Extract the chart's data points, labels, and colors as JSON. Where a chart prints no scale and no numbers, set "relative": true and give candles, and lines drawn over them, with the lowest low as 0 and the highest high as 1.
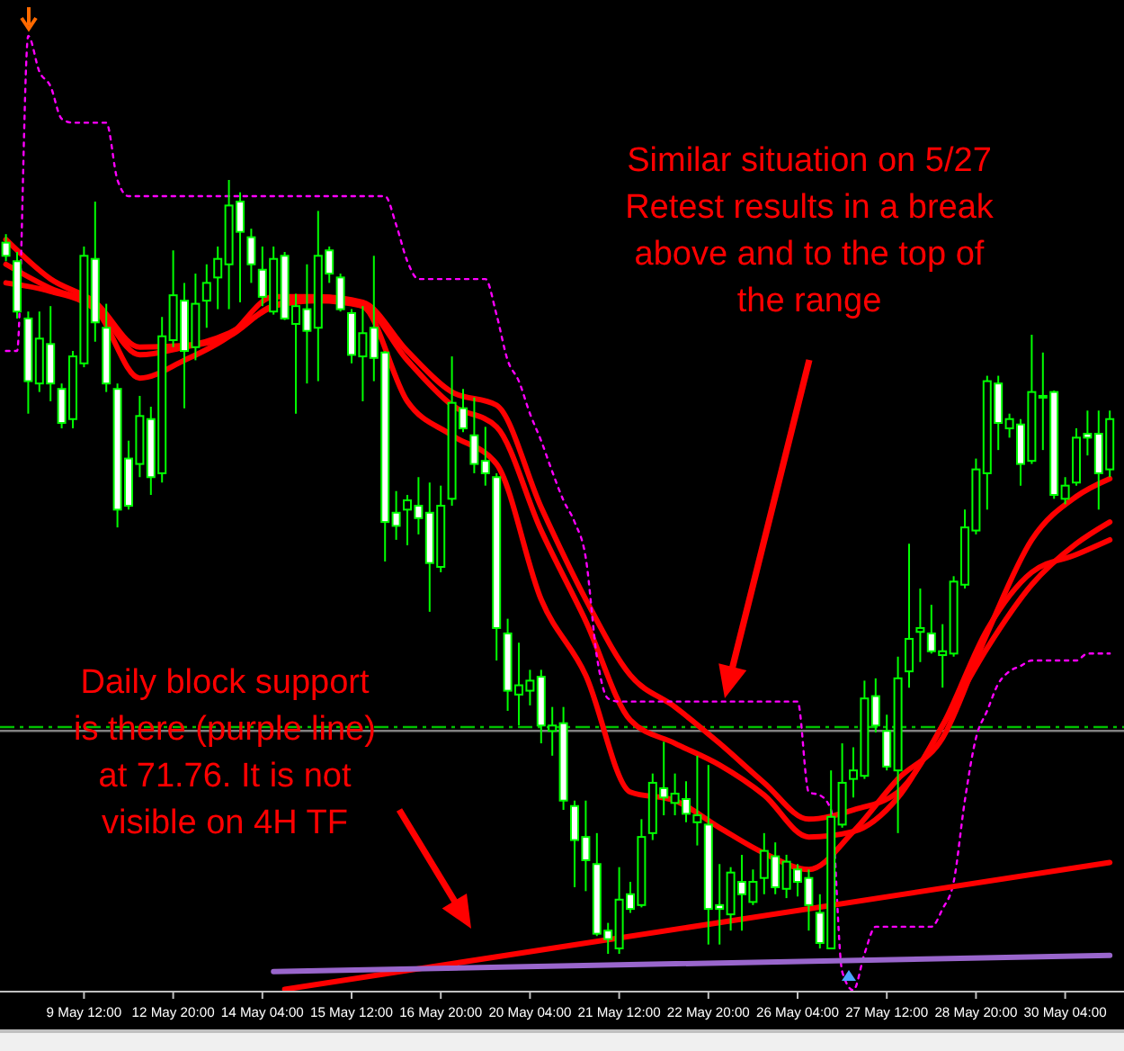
{
  "chart_data": {
    "type": "candlestick",
    "relative": true,
    "color": "#00ff00",
    "categories": [
      null,
      null,
      null,
      null,
      null,
      null,
      null,
      "9 May 12:00",
      null,
      null,
      null,
      null,
      null,
      null,
      null,
      "12 May 20:00",
      null,
      null,
      null,
      null,
      null,
      null,
      null,
      "14 May 04:00",
      null,
      null,
      null,
      null,
      null,
      null,
      null,
      "15 May 12:00",
      null,
      null,
      null,
      null,
      null,
      null,
      null,
      "16 May 20:00",
      null,
      null,
      null,
      null,
      null,
      null,
      null,
      "20 May 04:00",
      null,
      null,
      null,
      null,
      null,
      null,
      null,
      "21 May 12:00",
      null,
      null,
      null,
      null,
      null,
      null,
      null,
      "22 May 20:00",
      null,
      null,
      null,
      null,
      null,
      null,
      null,
      "26 May 04:00",
      null,
      null,
      null,
      null,
      null,
      null,
      null,
      "27 May 12:00",
      null,
      null,
      null,
      null,
      null,
      null,
      null,
      "28 May 20:00",
      null,
      null,
      null,
      null,
      null,
      null,
      null,
      "30 May 04:00",
      null,
      null,
      null,
      null
    ],
    "ohlc": [
      [
        0.919,
        0.93,
        0.895,
        0.902
      ],
      [
        0.895,
        0.907,
        0.821,
        0.83
      ],
      [
        0.821,
        0.83,
        0.698,
        0.74
      ],
      [
        0.737,
        0.83,
        0.726,
        0.795
      ],
      [
        0.788,
        0.837,
        0.714,
        0.737
      ],
      [
        0.73,
        0.737,
        0.679,
        0.686
      ],
      [
        0.691,
        0.779,
        0.679,
        0.772
      ],
      [
        0.763,
        0.914,
        0.758,
        0.902
      ],
      [
        0.898,
        0.972,
        0.791,
        0.816
      ],
      [
        0.809,
        0.84,
        0.726,
        0.737
      ],
      [
        0.73,
        0.737,
        0.551,
        0.574
      ],
      [
        0.64,
        0.663,
        0.574,
        0.579
      ],
      [
        0.633,
        0.721,
        0.616,
        0.695
      ],
      [
        0.691,
        0.707,
        0.593,
        0.616
      ],
      [
        0.621,
        0.823,
        0.609,
        0.798
      ],
      [
        0.793,
        0.909,
        0.784,
        0.851
      ],
      [
        0.844,
        0.867,
        0.705,
        0.779
      ],
      [
        0.784,
        0.879,
        0.767,
        0.84
      ],
      [
        0.844,
        0.891,
        0.809,
        0.867
      ],
      [
        0.874,
        0.914,
        0.833,
        0.898
      ],
      [
        0.891,
        1,
        0.833,
        0.967
      ],
      [
        0.972,
        0.984,
        0.842,
        0.933
      ],
      [
        0.926,
        0.937,
        0.867,
        0.891
      ],
      [
        0.884,
        0.914,
        0.837,
        0.849
      ],
      [
        0.83,
        0.914,
        0.826,
        0.898
      ],
      [
        0.902,
        0.907,
        0.819,
        0.821
      ],
      [
        0.814,
        0.853,
        0.698,
        0.837
      ],
      [
        0.833,
        0.891,
        0.737,
        0.805
      ],
      [
        0.809,
        0.96,
        0.74,
        0.902
      ],
      [
        0.909,
        0.914,
        0.867,
        0.879
      ],
      [
        0.874,
        0.879,
        0.83,
        0.833
      ],
      [
        0.828,
        0.833,
        0.763,
        0.774
      ],
      [
        0.772,
        0.837,
        0.714,
        0.802
      ],
      [
        0.809,
        0.902,
        0.74,
        0.77
      ],
      [
        0.777,
        0.779,
        0.507,
        0.558
      ],
      [
        0.57,
        0.598,
        0.535,
        0.553
      ],
      [
        0.574,
        0.593,
        0.528,
        0.586
      ],
      [
        0.579,
        0.616,
        0.542,
        0.563
      ],
      [
        0.57,
        0.609,
        0.442,
        0.505
      ],
      [
        0.5,
        0.605,
        0.493,
        0.579
      ],
      [
        0.588,
        0.772,
        0.579,
        0.712
      ],
      [
        0.705,
        0.73,
        0.674,
        0.679
      ],
      [
        0.67,
        0.719,
        0.621,
        0.633
      ],
      [
        0.637,
        0.681,
        0.605,
        0.621
      ],
      [
        0.616,
        0.621,
        0.379,
        0.421
      ],
      [
        0.414,
        0.433,
        0.314,
        0.34
      ],
      [
        0.335,
        0.402,
        0.295,
        0.347
      ],
      [
        0.34,
        0.367,
        0.321,
        0.353
      ],
      [
        0.358,
        0.367,
        0.272,
        0.295
      ],
      [
        0.288,
        0.319,
        0.256,
        0.295
      ],
      [
        0.298,
        0.319,
        0.186,
        0.198
      ],
      [
        0.191,
        0.198,
        0.086,
        0.147
      ],
      [
        0.151,
        0.198,
        0.081,
        0.121
      ],
      [
        0.116,
        0.156,
        0.023,
        0.026
      ],
      [
        0.03,
        0.04,
        0,
        0.019
      ],
      [
        0.007,
        0.112,
        0,
        0.07
      ],
      [
        0.077,
        0.093,
        0.053,
        0.058
      ],
      [
        0.063,
        0.174,
        0.06,
        0.151
      ],
      [
        0.156,
        0.233,
        0.147,
        0.221
      ],
      [
        0.214,
        0.274,
        0.179,
        0.202
      ],
      [
        0.195,
        0.233,
        0.179,
        0.207
      ],
      [
        0.2,
        0.223,
        0.17,
        0.181
      ],
      [
        0.17,
        0.256,
        0.14,
        0.179
      ],
      [
        0.167,
        0.244,
        0.012,
        0.058
      ],
      [
        0.063,
        0.116,
        0.012,
        0.058
      ],
      [
        0.051,
        0.112,
        0.03,
        0.105
      ],
      [
        0.093,
        0.128,
        0.03,
        0.077
      ],
      [
        0.067,
        0.109,
        0.063,
        0.093
      ],
      [
        0.098,
        0.156,
        0.077,
        0.133
      ],
      [
        0.126,
        0.144,
        0.077,
        0.086
      ],
      [
        0.084,
        0.128,
        0.072,
        0.119
      ],
      [
        0.109,
        0.116,
        0.074,
        0.093
      ],
      [
        0.098,
        0.109,
        0.03,
        0.063
      ],
      [
        0.053,
        0.077,
        0.007,
        0.014
      ],
      [
        0.007,
        0.237,
        0.007,
        0.177
      ],
      [
        0.167,
        0.272,
        0.163,
        0.221
      ],
      [
        0.226,
        0.267,
        0.202,
        0.237
      ],
      [
        0.23,
        0.353,
        0.226,
        0.33
      ],
      [
        0.333,
        0.356,
        0.286,
        0.295
      ],
      [
        0.288,
        0.309,
        0.237,
        0.242
      ],
      [
        0.237,
        0.384,
        0.156,
        0.356
      ],
      [
        0.365,
        0.53,
        0.344,
        0.407
      ],
      [
        0.416,
        0.472,
        0.377,
        0.421
      ],
      [
        0.414,
        0.451,
        0.388,
        0.391
      ],
      [
        0.386,
        0.426,
        0.344,
        0.391
      ],
      [
        0.388,
        0.488,
        0.384,
        0.481
      ],
      [
        0.477,
        0.574,
        0.472,
        0.551
      ],
      [
        0.547,
        0.64,
        0.542,
        0.626
      ],
      [
        0.621,
        0.747,
        0.574,
        0.74
      ],
      [
        0.737,
        0.747,
        0.651,
        0.686
      ],
      [
        0.679,
        0.698,
        0.667,
        0.691
      ],
      [
        0.684,
        0.691,
        0.605,
        0.633
      ],
      [
        0.637,
        0.8,
        0.633,
        0.726
      ],
      [
        0.721,
        0.777,
        0.651,
        0.721
      ],
      [
        0.726,
        0.728,
        0.588,
        0.593
      ],
      [
        0.588,
        0.616,
        0.581,
        0.605
      ],
      [
        0.609,
        0.679,
        0.605,
        0.667
      ],
      [
        0.672,
        0.702,
        0.644,
        0.667
      ],
      [
        0.672,
        0.702,
        0.574,
        0.621
      ],
      [
        0.626,
        0.702,
        0.616,
        0.691
      ]
    ],
    "series": [
      {
        "type": "line",
        "color": "#ff0000",
        "values": [
          0.867,
          null,
          null,
          null,
          0.856,
          null,
          null,
          null,
          0.833,
          null,
          null,
          null,
          0.744,
          null,
          null,
          null,
          0.767,
          null,
          null,
          null,
          0.798,
          null,
          null,
          null,
          0.849,
          null,
          null,
          null,
          0.849,
          null,
          null,
          null,
          0.837,
          null,
          null,
          null,
          0.714,
          null,
          null,
          null,
          0.67,
          null,
          null,
          null,
          0.633,
          null,
          null,
          null,
          0.458,
          null,
          null,
          null,
          0.36,
          null,
          null,
          null,
          0.209,
          null,
          null,
          null,
          0.198,
          null,
          null,
          null,
          0.163,
          null,
          null,
          null,
          0.13,
          null,
          null,
          null,
          0.109,
          null,
          null,
          null,
          0.158,
          null,
          null,
          null,
          0.226,
          null,
          null,
          null,
          0.279,
          null,
          null,
          null,
          0.414,
          null,
          null,
          null,
          0.535,
          null,
          null,
          null,
          0.591,
          null,
          null,
          0.614
        ]
      },
      {
        "type": "line",
        "color": "#ff0000",
        "values": [
          0.891,
          null,
          null,
          null,
          0.86,
          null,
          null,
          null,
          0.837,
          null,
          null,
          null,
          0.774,
          null,
          null,
          null,
          0.784,
          null,
          null,
          null,
          0.798,
          null,
          null,
          null,
          0.837,
          null,
          null,
          null,
          0.844,
          null,
          null,
          null,
          0.837,
          null,
          null,
          null,
          0.767,
          null,
          null,
          null,
          0.709,
          null,
          null,
          null,
          0.681,
          null,
          null,
          null,
          0.547,
          null,
          null,
          null,
          0.43,
          null,
          null,
          null,
          0.302,
          null,
          null,
          null,
          0.272,
          null,
          null,
          null,
          0.244,
          null,
          null,
          null,
          0.205,
          null,
          null,
          null,
          0.151,
          null,
          null,
          null,
          0.158,
          null,
          null,
          null,
          0.202,
          null,
          null,
          null,
          0.295,
          null,
          null,
          null,
          0.395,
          null,
          null,
          null,
          0.477,
          null,
          null,
          null,
          0.53,
          null,
          null,
          0.558
        ]
      },
      {
        "type": "line",
        "color": "#ff0000",
        "values": [
          0.923,
          null,
          null,
          null,
          0.872,
          null,
          null,
          null,
          0.842,
          null,
          null,
          null,
          0.784,
          null,
          null,
          null,
          0.786,
          null,
          null,
          null,
          0.802,
          null,
          null,
          null,
          0.837,
          null,
          null,
          null,
          0.849,
          null,
          null,
          null,
          0.842,
          null,
          null,
          null,
          0.779,
          null,
          null,
          null,
          0.726,
          null,
          null,
          null,
          0.709,
          null,
          null,
          null,
          0.577,
          null,
          null,
          null,
          0.458,
          null,
          null,
          null,
          0.36,
          null,
          null,
          null,
          0.319,
          null,
          null,
          null,
          0.272,
          null,
          null,
          null,
          0.221,
          null,
          null,
          null,
          0.174,
          null,
          null,
          null,
          0.186,
          null,
          null,
          null,
          0.209,
          null,
          null,
          null,
          0.295,
          null,
          null,
          null,
          0.419,
          null,
          null,
          null,
          0.493,
          null,
          null,
          null,
          0.516,
          null,
          null,
          0.535
        ]
      },
      {
        "type": "line",
        "color": "#ff00ff",
        "line_style": "dotted",
        "values": [
          0.779,
          0.779,
          1.186,
          1.14,
          1.121,
          1.079,
          1.074,
          null,
          null,
          1.074,
          1.0,
          0.979,
          null,
          null,
          null,
          null,
          null,
          null,
          null,
          null,
          null,
          null,
          null,
          null,
          null,
          null,
          null,
          null,
          null,
          null,
          null,
          null,
          null,
          null,
          0.979,
          0.942,
          0.895,
          0.872,
          null,
          null,
          null,
          null,
          null,
          0.872,
          0.826,
          0.767,
          0.74,
          0.698,
          0.663,
          0.623,
          0.586,
          0.558,
          0.512,
          0.384,
          0.33,
          0.326,
          null,
          null,
          null,
          null,
          null,
          null,
          null,
          null,
          null,
          null,
          null,
          null,
          null,
          null,
          null,
          0.326,
          0.209,
          0.205,
          0.186,
          -0.023,
          -0.047,
          0,
          0.035,
          null,
          null,
          null,
          null,
          0.035,
          0.058,
          0.093,
          0.198,
          0.279,
          0.314,
          0.349,
          0.365,
          0.372,
          0.379,
          null,
          null,
          null,
          0.379,
          0.388,
          null,
          0.388
        ]
      },
      {
        "type": "line",
        "color": "#ff0000",
        "values": [
          null,
          null,
          null,
          null,
          null,
          null,
          null,
          null,
          null,
          null,
          null,
          null,
          null,
          null,
          null,
          null,
          null,
          null,
          null,
          null,
          null,
          null,
          null,
          null,
          null,
          -0.046,
          null,
          null,
          null,
          null,
          null,
          null,
          null,
          null,
          null,
          null,
          null,
          null,
          null,
          null,
          null,
          null,
          null,
          null,
          null,
          null,
          null,
          null,
          null,
          null,
          null,
          null,
          null,
          null,
          null,
          null,
          null,
          null,
          null,
          null,
          null,
          null,
          null,
          null,
          null,
          null,
          null,
          null,
          null,
          null,
          null,
          null,
          null,
          null,
          null,
          null,
          null,
          null,
          null,
          null,
          null,
          null,
          null,
          null,
          null,
          null,
          null,
          null,
          null,
          null,
          null,
          null,
          null,
          null,
          null,
          null,
          null,
          null,
          null,
          0.118
        ]
      },
      {
        "type": "line",
        "color": "#9966cc",
        "values": [
          null,
          null,
          null,
          null,
          null,
          null,
          null,
          null,
          null,
          null,
          null,
          null,
          null,
          null,
          null,
          null,
          null,
          null,
          null,
          null,
          null,
          null,
          null,
          null,
          -0.023,
          null,
          null,
          null,
          null,
          null,
          null,
          null,
          null,
          null,
          null,
          null,
          null,
          null,
          null,
          null,
          null,
          null,
          null,
          null,
          null,
          null,
          null,
          null,
          null,
          null,
          null,
          null,
          null,
          null,
          null,
          null,
          null,
          null,
          null,
          null,
          null,
          null,
          null,
          null,
          null,
          null,
          null,
          null,
          null,
          null,
          null,
          null,
          null,
          null,
          null,
          null,
          null,
          null,
          null,
          null,
          null,
          null,
          null,
          null,
          null,
          null,
          null,
          null,
          null,
          null,
          null,
          null,
          null,
          null,
          null,
          null,
          null,
          null,
          null,
          -0.002
        ]
      }
    ],
    "ref_lines": [
      {
        "axis": "y",
        "value": 0.293,
        "color": "#00c000",
        "line_style": "dashed"
      },
      {
        "axis": "y",
        "value": 0.288,
        "color": "#808080",
        "line_style": "solid"
      }
    ],
    "annotations": [
      "Similar situation on 5/27\nRetest results in a break\nabove and to the top of\nthe range",
      "Daily block support\nis there (purple line)\nat 71.76. It is not\nvisible on 4H TF"
    ]
  }
}
